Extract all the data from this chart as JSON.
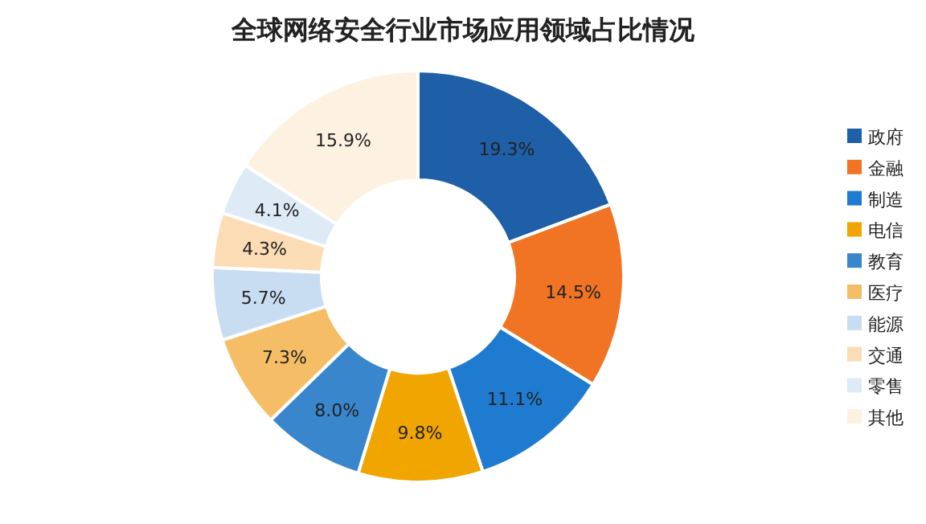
{
  "chart_data": {
    "type": "donut",
    "title": "全球网络安全行业市场应用领域占比情况",
    "categories": [
      "政府",
      "金融",
      "制造",
      "电信",
      "教育",
      "医疗",
      "能源",
      "交通",
      "零售",
      "其他"
    ],
    "values": [
      19.3,
      14.5,
      11.1,
      9.8,
      8.0,
      7.3,
      5.7,
      4.3,
      4.1,
      15.9
    ],
    "value_labels": [
      "19.3%",
      "14.5%",
      "11.1%",
      "9.8%",
      "8.0%",
      "7.3%",
      "5.7%",
      "4.3%",
      "4.1%",
      "15.9%"
    ],
    "colors": [
      "#1f5fa8",
      "#f07424",
      "#1f7bd0",
      "#f0a500",
      "#3a86cc",
      "#f5be66",
      "#c9ddf2",
      "#fbdcb4",
      "#dfeaf7",
      "#fdf1e2"
    ],
    "legend": "right"
  }
}
